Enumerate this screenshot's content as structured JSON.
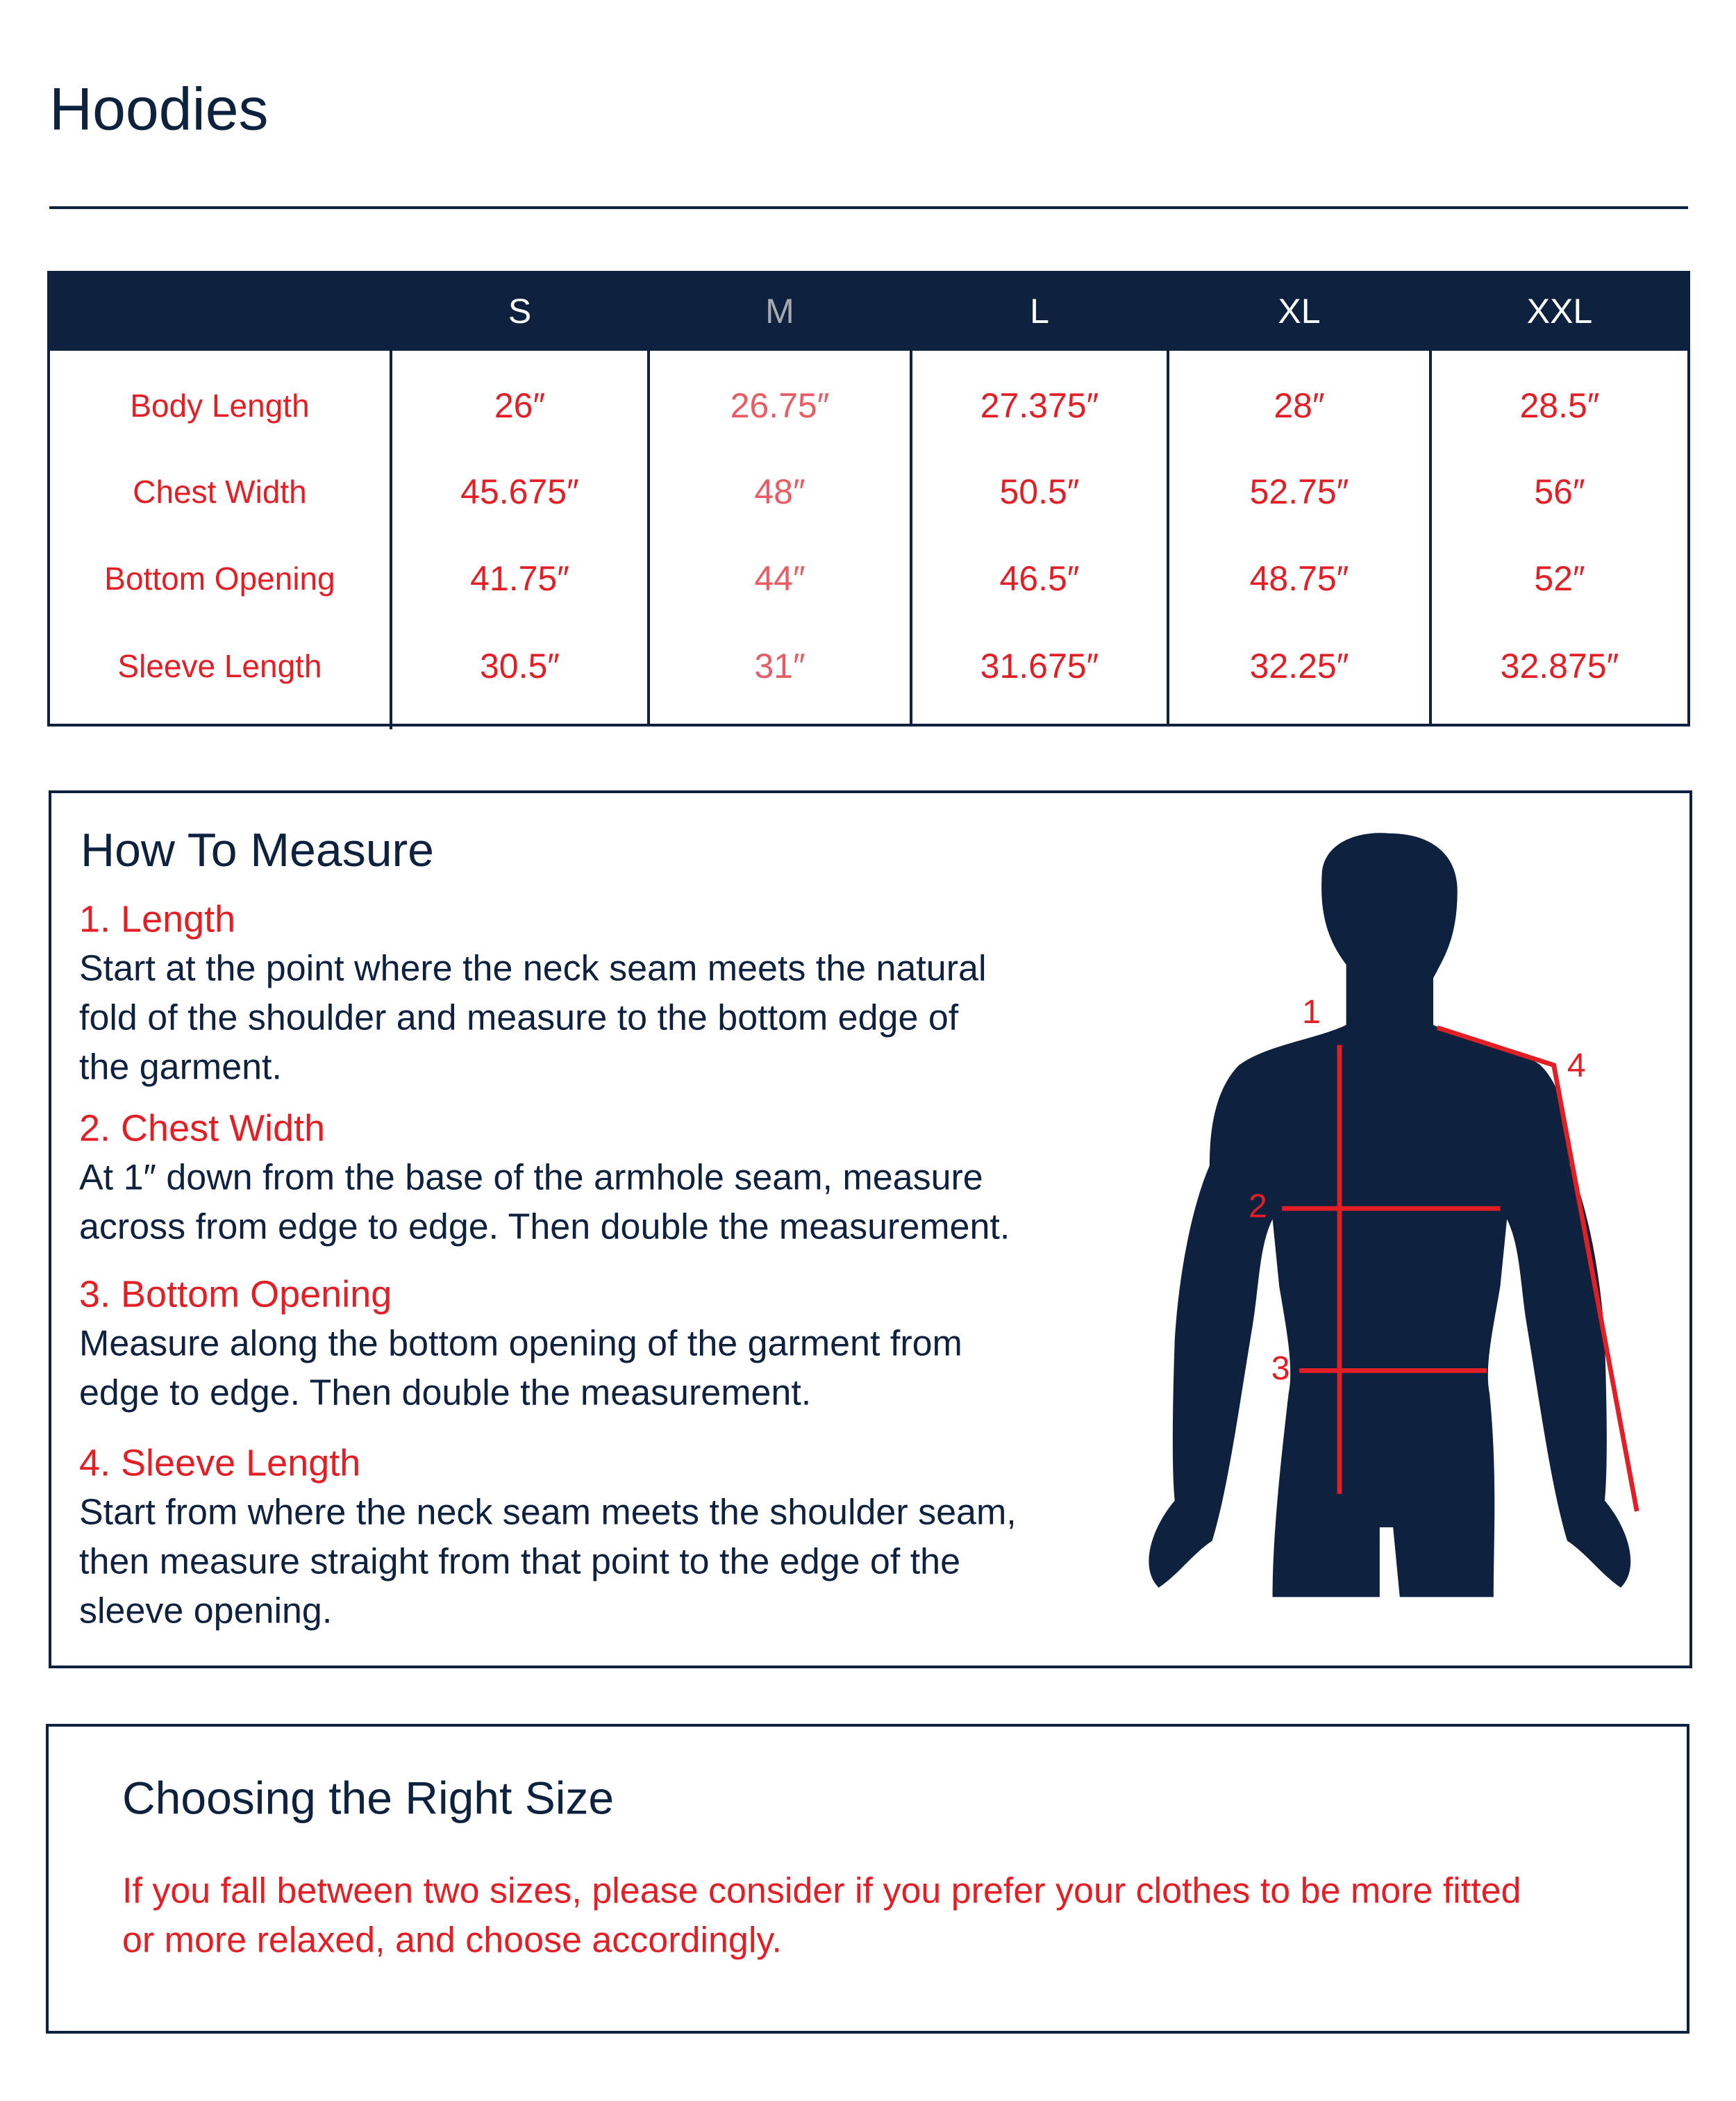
{
  "header": {
    "title": "Hoodies"
  },
  "table": {
    "columns": [
      "S",
      "M",
      "L",
      "XL",
      "XXL"
    ],
    "rows": [
      {
        "label": "Body Length",
        "values": [
          "26″",
          "26.75″",
          "27.375″",
          "28″",
          "28.5″"
        ]
      },
      {
        "label": "Chest Width",
        "values": [
          "45.675″",
          "48″",
          "50.5″",
          "52.75″",
          "56″"
        ]
      },
      {
        "label": "Bottom Opening",
        "values": [
          "41.75″",
          "44″",
          "46.5″",
          "48.75″",
          "52″"
        ]
      },
      {
        "label": "Sleeve Length",
        "values": [
          "30.5″",
          "31″",
          "31.675″",
          "32.25″",
          "32.875″"
        ]
      }
    ]
  },
  "measure": {
    "title": "How To Measure",
    "items": [
      {
        "heading": "1. Length",
        "lines": [
          "Start at the point where the neck seam meets the natural",
          "fold of the shoulder and measure to the bottom edge of",
          "the garment."
        ]
      },
      {
        "heading": "2. Chest Width",
        "lines": [
          "At 1″ down from the base of the armhole seam, measure",
          "across from edge to edge. Then double the measurement."
        ]
      },
      {
        "heading": "3. Bottom Opening",
        "lines": [
          "Measure along the bottom opening of the garment from",
          "edge to edge. Then double the measurement."
        ]
      },
      {
        "heading": "4. Sleeve Length",
        "lines": [
          "Start from where the neck seam meets the shoulder seam,",
          "then measure straight from that point to the edge of the",
          "sleeve opening."
        ]
      }
    ],
    "figure_labels": [
      "1",
      "2",
      "3",
      "4"
    ]
  },
  "choosing": {
    "title": "Choosing the Right Size",
    "lines": [
      "If you fall between two sizes, please consider if you prefer your clothes to be more fitted",
      "or more relaxed, and choose accordingly."
    ]
  }
}
